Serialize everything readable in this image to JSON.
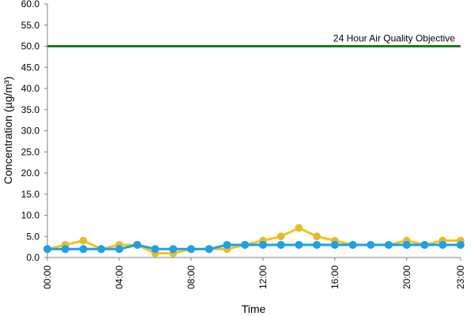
{
  "chart_data": {
    "type": "line",
    "title": "",
    "xlabel": "Time",
    "ylabel": "Concentration (µg/m³)",
    "ylim": [
      0,
      60
    ],
    "y_tick_values": [
      0,
      5,
      10,
      15,
      20,
      25,
      30,
      35,
      40,
      45,
      50,
      55,
      60
    ],
    "y_tick_labels": [
      "0.0",
      "5.0",
      "10.0",
      "15.0",
      "20.0",
      "25.0",
      "30.0",
      "35.0",
      "40.0",
      "45.0",
      "50.0",
      "55.0",
      "60.0"
    ],
    "x_tick_hours": [
      0,
      4,
      8,
      12,
      16,
      20,
      23
    ],
    "x_tick_labels": [
      "00:00",
      "04:00",
      "08:00",
      "12:00",
      "16:00",
      "20:00",
      "23:00"
    ],
    "x_hours": [
      0,
      1,
      2,
      3,
      4,
      5,
      6,
      7,
      8,
      9,
      10,
      11,
      12,
      13,
      14,
      15,
      16,
      17,
      18,
      19,
      20,
      21,
      22,
      23
    ],
    "grid": false,
    "legend": "none",
    "reference_line": {
      "value": 50,
      "label": "24 Hour Air Quality Objective",
      "color": "#1e7a1e"
    },
    "series": [
      {
        "color": "#f0c419",
        "marker_fill": "#e2b93b",
        "values": [
          2,
          3,
          4,
          2,
          3,
          3,
          1,
          1,
          2,
          2,
          2,
          3,
          4,
          5,
          7,
          5,
          4,
          3,
          3,
          3,
          4,
          3,
          4,
          4
        ]
      },
      {
        "color": "#1f9fe8",
        "marker_fill": "#1f9fe8",
        "values": [
          2,
          2,
          2,
          2,
          2,
          3,
          2,
          2,
          2,
          2,
          3,
          3,
          3,
          3,
          3,
          3,
          3,
          3,
          3,
          3,
          3,
          3,
          3,
          3
        ]
      }
    ]
  }
}
